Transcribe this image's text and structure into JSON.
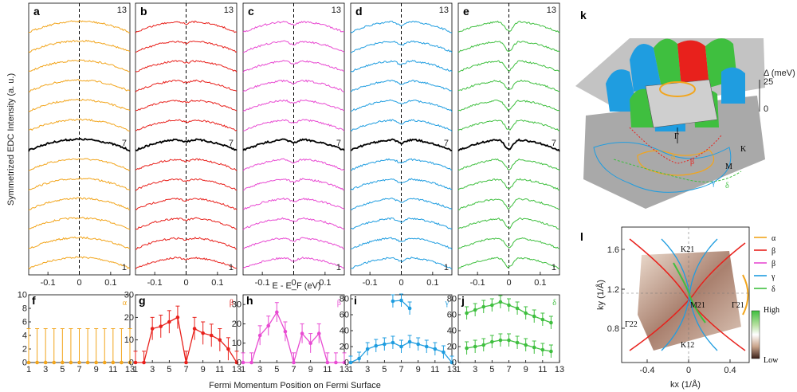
{
  "figure": {
    "panel_labels": [
      "a",
      "b",
      "c",
      "d",
      "e",
      "f",
      "g",
      "h",
      "i",
      "j",
      "k",
      "l"
    ],
    "edc": {
      "ylabel": "Symmetrized EDC Intensity (a. u.)",
      "xlabel": "E - E_F (eV)",
      "xticks": [
        "-0.1",
        "0",
        "0.1"
      ],
      "trace_count": 13,
      "highlight_index": 7,
      "index_labels": {
        "top": "13",
        "mid": "7",
        "bottom": "1"
      },
      "panels": [
        {
          "id": "a",
          "color": "#f2a51c",
          "gap_depth": 0.0
        },
        {
          "id": "b",
          "color": "#e8211c",
          "gap_depth": 0.1
        },
        {
          "id": "c",
          "color": "#e84bd2",
          "gap_depth": 0.15
        },
        {
          "id": "d",
          "color": "#1f9de0",
          "gap_depth": 0.18
        },
        {
          "id": "e",
          "color": "#3fbf3f",
          "gap_depth": 0.45
        }
      ]
    },
    "gap": {
      "ylabel": "Gap (meV)",
      "xlabel": "Fermi Momentum Position on Fermi Surface",
      "xticks": [
        "1",
        "3",
        "5",
        "7",
        "9",
        "11",
        "13"
      ]
    },
    "k_panel": {
      "axis_label": "Δ (meV)",
      "ticks": [
        "25",
        "0"
      ],
      "labels": [
        "Γ",
        "K",
        "M",
        "α",
        "β",
        "γ",
        "δ"
      ]
    },
    "l_panel": {
      "xlabel": "kx (1/Å)",
      "ylabel": "ky (1/Å)",
      "xticks": [
        "-0.4",
        "0",
        "0.4"
      ],
      "yticks": [
        "1.6",
        "1.2",
        "0.8"
      ],
      "point_labels": [
        "K21",
        "M21",
        "Γ21",
        "Γ22",
        "K12"
      ],
      "legend": [
        "α",
        "β",
        "β",
        "γ",
        "δ"
      ],
      "legend_colors": [
        "#f2a51c",
        "#e8211c",
        "#e84bd2",
        "#1f9de0",
        "#3fbf3f"
      ],
      "colorbar": {
        "high": "High",
        "low": "Low"
      }
    }
  },
  "chart_data": [
    {
      "type": "line",
      "panel": "f",
      "title": "α",
      "xlabel": "",
      "ylabel": "Gap (meV)",
      "ylim": [
        0,
        10
      ],
      "yticks": [
        0,
        2,
        4,
        6,
        8,
        10
      ],
      "x": [
        1,
        2,
        3,
        4,
        5,
        6,
        7,
        8,
        9,
        10,
        11,
        12,
        13
      ],
      "series": [
        {
          "name": "α",
          "values": [
            0,
            0,
            0,
            0,
            0,
            0,
            0,
            0,
            0,
            0,
            0,
            0,
            0
          ],
          "err": [
            5,
            5,
            5,
            5,
            5,
            5,
            5,
            5,
            5,
            5,
            5,
            5,
            5
          ]
        }
      ],
      "color": "#f2a51c"
    },
    {
      "type": "line",
      "panel": "g",
      "title": "β",
      "xlabel": "",
      "ylabel": "",
      "ylim": [
        0,
        30
      ],
      "yticks": [
        0,
        10,
        20,
        30
      ],
      "x": [
        1,
        2,
        3,
        4,
        5,
        6,
        7,
        8,
        9,
        10,
        11,
        12,
        13
      ],
      "series": [
        {
          "name": "β",
          "values": [
            0,
            0,
            15,
            16,
            18,
            20,
            0,
            15,
            13,
            12,
            10,
            6,
            0
          ],
          "err": [
            5,
            5,
            5,
            5,
            5,
            5,
            5,
            5,
            5,
            5,
            5,
            5,
            5
          ]
        }
      ],
      "color": "#e8211c"
    },
    {
      "type": "line",
      "panel": "h",
      "title": "β",
      "xlabel": "",
      "ylabel": "",
      "ylim": [
        0,
        35
      ],
      "yticks": [
        0,
        10,
        20,
        30
      ],
      "x": [
        1,
        2,
        3,
        4,
        5,
        6,
        7,
        8,
        9,
        10,
        11,
        12,
        13
      ],
      "series": [
        {
          "name": "β",
          "values": [
            0,
            0,
            14,
            19,
            26,
            16,
            0,
            15,
            10,
            15,
            0,
            0,
            0
          ],
          "err": [
            5,
            5,
            5,
            5,
            5,
            5,
            5,
            5,
            5,
            5,
            5,
            5,
            5
          ]
        }
      ],
      "color": "#e84bd2"
    },
    {
      "type": "line",
      "panel": "i",
      "title": "γ",
      "xlabel": "",
      "ylabel": "",
      "ylim": [
        0,
        85
      ],
      "yticks": [
        0,
        20,
        40,
        60,
        80
      ],
      "x": [
        1,
        2,
        3,
        4,
        5,
        6,
        7,
        8,
        9,
        10,
        11,
        12,
        13
      ],
      "series": [
        {
          "name": "γ lower",
          "values": [
            0,
            5,
            17,
            21,
            23,
            25,
            20,
            26,
            23,
            20,
            17,
            13,
            0
          ],
          "err": [
            8,
            8,
            8,
            8,
            8,
            8,
            8,
            8,
            8,
            8,
            8,
            8,
            8
          ]
        },
        {
          "name": "γ upper",
          "x": [
            6,
            7,
            8
          ],
          "values": [
            77,
            78,
            68
          ],
          "err": [
            8,
            8,
            8
          ]
        }
      ],
      "color": "#1f9de0"
    },
    {
      "type": "line",
      "panel": "j",
      "title": "δ",
      "xlabel": "",
      "ylabel": "",
      "ylim": [
        0,
        85
      ],
      "yticks": [
        0,
        20,
        40,
        60,
        80
      ],
      "x": [
        1,
        2,
        3,
        4,
        5,
        6,
        7,
        8,
        9,
        10,
        11,
        12,
        13
      ],
      "series": [
        {
          "name": "δ upper",
          "x": [
            2,
            3,
            4,
            5,
            6,
            7,
            8,
            9,
            10,
            11,
            12
          ],
          "values": [
            62,
            66,
            70,
            72,
            76,
            72,
            68,
            62,
            58,
            54,
            50
          ],
          "err": [
            8,
            8,
            8,
            8,
            8,
            8,
            8,
            8,
            8,
            8,
            8
          ]
        },
        {
          "name": "δ lower",
          "x": [
            2,
            3,
            4,
            5,
            6,
            7,
            8,
            9,
            10,
            11,
            12
          ],
          "values": [
            18,
            20,
            22,
            26,
            28,
            28,
            25,
            22,
            19,
            16,
            14
          ],
          "err": [
            8,
            8,
            8,
            8,
            8,
            8,
            8,
            8,
            8,
            8,
            8
          ]
        }
      ],
      "color": "#3fbf3f"
    }
  ]
}
